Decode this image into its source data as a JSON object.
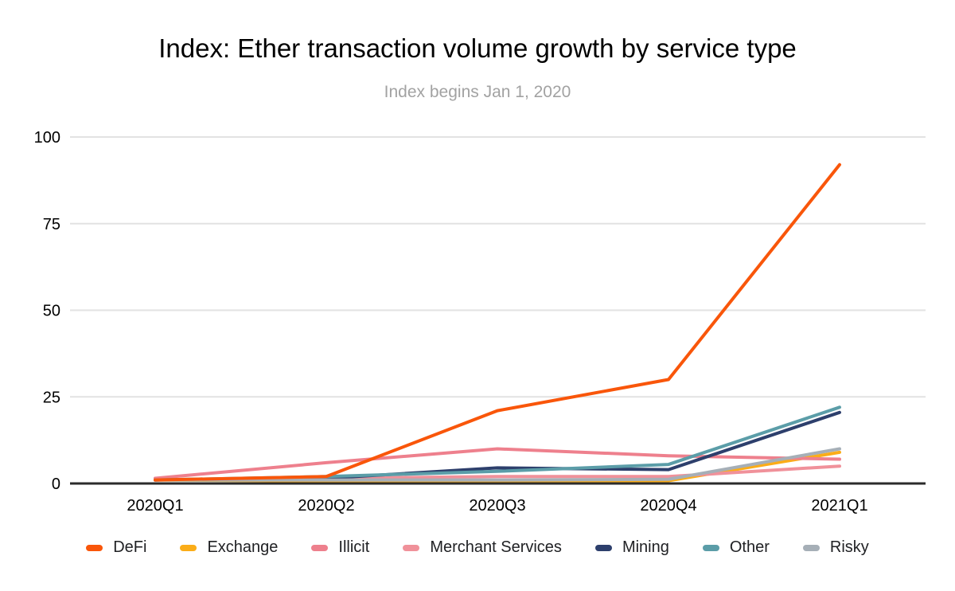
{
  "chart": {
    "title": "Index: Ether transaction volume growth by service type",
    "subtitle": "Index begins Jan 1, 2020"
  },
  "chart_data": {
    "type": "line",
    "title": "Index: Ether transaction volume growth by service type",
    "subtitle": "Index begins Jan 1, 2020",
    "categories": [
      "2020Q1",
      "2020Q2",
      "2020Q3",
      "2020Q4",
      "2021Q1"
    ],
    "series": [
      {
        "name": "DeFi",
        "color": "#f9560a",
        "values": [
          1,
          2,
          21,
          30,
          92
        ]
      },
      {
        "name": "Exchange",
        "color": "#fbad18",
        "values": [
          1,
          0.7,
          0.7,
          0.8,
          9
        ]
      },
      {
        "name": "Illicit",
        "color": "#ee808d",
        "values": [
          1.5,
          6,
          10,
          8,
          7
        ]
      },
      {
        "name": "Merchant Services",
        "color": "#f0919a",
        "values": [
          1,
          1.5,
          2,
          2,
          5
        ]
      },
      {
        "name": "Mining",
        "color": "#2d3f6c",
        "values": [
          1,
          1.5,
          4.5,
          4,
          20.5
        ]
      },
      {
        "name": "Other",
        "color": "#5b9da8",
        "values": [
          1,
          2,
          3.5,
          5.5,
          22
        ]
      },
      {
        "name": "Risky",
        "color": "#a6afb7",
        "values": [
          1,
          1,
          1,
          1.2,
          10
        ]
      }
    ],
    "draw_order": [
      "Exchange",
      "Illicit",
      "Merchant Services",
      "Mining",
      "Other",
      "Risky",
      "DeFi"
    ],
    "xlabel": "",
    "ylabel": "",
    "ylim": [
      0,
      100
    ],
    "yticks": [
      0,
      25,
      50,
      75,
      100
    ],
    "grid": "horizontal",
    "legend_position": "bottom",
    "style": {
      "background": "#ffffff",
      "grid_color": "#e2e2e2",
      "axis_color": "#2b2b2b",
      "tick_label_color": "#000000",
      "title_color": "#000000",
      "subtitle_color": "#a2a2a2"
    }
  }
}
